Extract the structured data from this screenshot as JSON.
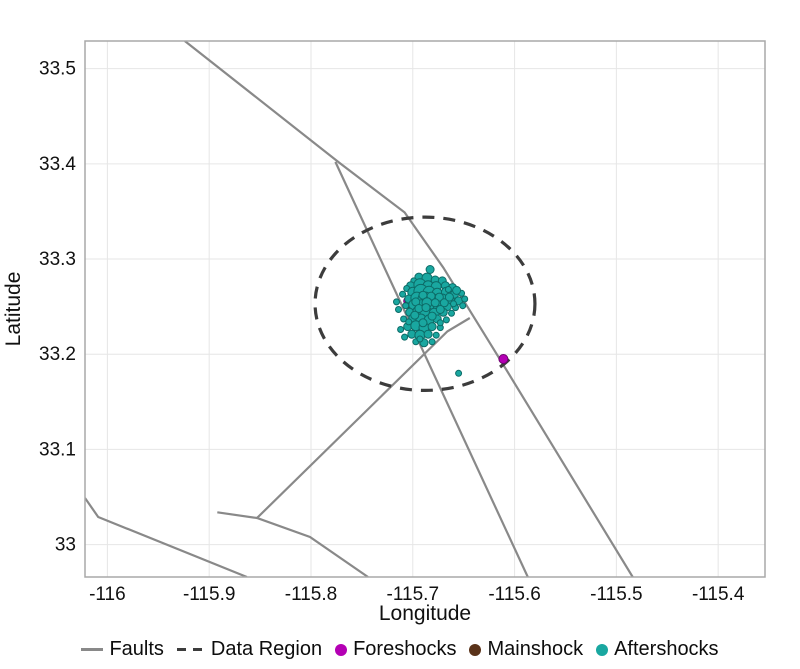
{
  "figure": {
    "xlabel": "Longitude",
    "ylabel": "Latitude"
  },
  "legend": {
    "items": [
      {
        "label": "Faults",
        "type": "line",
        "color": "#898989"
      },
      {
        "label": "Data Region",
        "type": "dash",
        "color": "#3c3c3c"
      },
      {
        "label": "Foreshocks",
        "type": "dot",
        "color": "#b400b4"
      },
      {
        "label": "Mainshock",
        "type": "dot",
        "color": "#5a3219"
      },
      {
        "label": "Aftershocks",
        "type": "dot",
        "color": "#19a7a0"
      }
    ]
  },
  "chart_data": {
    "type": "scatter",
    "title": "",
    "xlabel": "Longitude",
    "ylabel": "Latitude",
    "xlim": [
      -116.022,
      -115.354
    ],
    "ylim": [
      32.966,
      33.529
    ],
    "grid": true,
    "legend_position": "bottom",
    "xticks": {
      "values": [
        -116,
        -115.9,
        -115.8,
        -115.7,
        -115.6,
        -115.5,
        -115.4
      ],
      "labels": [
        "-116",
        "-115.9",
        "-115.8",
        "-115.7",
        "-115.6",
        "-115.5",
        "-115.4"
      ]
    },
    "yticks": {
      "values": [
        33,
        33.1,
        33.2,
        33.3,
        33.4,
        33.5
      ],
      "labels": [
        "33",
        "33.1",
        "33.2",
        "33.3",
        "33.4",
        "33.5"
      ]
    },
    "colors": {
      "grid": "#e6e6e6",
      "frame": "#a8a8a8",
      "faults": "#898989",
      "data_region": "#3c3c3c",
      "foreshocks": "#b400b4",
      "foreshocks_edge": "#6e006e",
      "mainshock": "#5a3219",
      "mainshock_edge": "#32190a",
      "aftershocks": "#19a7a0",
      "aftershocks_edge": "#0d6b67",
      "text": "#111111"
    },
    "faults": [
      [
        [
          -115.924,
          33.529
        ],
        [
          -115.772,
          33.401
        ],
        [
          -115.708,
          33.349
        ],
        [
          -115.67,
          33.291
        ],
        [
          -115.614,
          33.194
        ],
        [
          -115.484,
          32.966
        ]
      ],
      [
        [
          -115.776,
          33.402
        ],
        [
          -115.587,
          32.966
        ]
      ],
      [
        [
          -116.022,
          33.049
        ],
        [
          -116.009,
          33.029
        ],
        [
          -115.863,
          32.966
        ]
      ],
      [
        [
          -115.892,
          33.034
        ],
        [
          -115.853,
          33.028
        ],
        [
          -115.801,
          33.008
        ],
        [
          -115.744,
          32.966
        ]
      ],
      [
        [
          -115.644,
          33.238
        ],
        [
          -115.666,
          33.224
        ],
        [
          -115.853,
          33.028
        ]
      ]
    ],
    "data_region_ellipse": {
      "center": [
        -115.688,
        33.253
      ],
      "rx": 0.108,
      "ry": 0.091,
      "style": "dashed"
    },
    "series": [
      {
        "name": "Foreshocks",
        "points": [
          [
            -115.705,
            33.256,
            4
          ],
          [
            -115.611,
            33.195,
            4.5
          ]
        ]
      },
      {
        "name": "Mainshock",
        "points": [
          [
            -115.702,
            33.253,
            5.5
          ]
        ]
      },
      {
        "name": "Aftershocks",
        "points": [
          [
            -115.683,
            33.289,
            4
          ],
          [
            -115.694,
            33.281,
            4
          ],
          [
            -115.686,
            33.28,
            5
          ],
          [
            -115.678,
            33.278,
            4
          ],
          [
            -115.699,
            33.277,
            3
          ],
          [
            -115.671,
            33.277,
            4
          ],
          [
            -115.702,
            33.272,
            4
          ],
          [
            -115.693,
            33.273,
            6
          ],
          [
            -115.685,
            33.272,
            5
          ],
          [
            -115.677,
            33.271,
            5
          ],
          [
            -115.668,
            33.272,
            4
          ],
          [
            -115.661,
            33.27,
            4
          ],
          [
            -115.706,
            33.269,
            3
          ],
          [
            -115.7,
            33.265,
            5
          ],
          [
            -115.692,
            33.266,
            7
          ],
          [
            -115.684,
            33.265,
            6
          ],
          [
            -115.676,
            33.264,
            5
          ],
          [
            -115.667,
            33.265,
            5
          ],
          [
            -115.659,
            33.263,
            4
          ],
          [
            -115.652,
            33.264,
            3
          ],
          [
            -115.71,
            33.263,
            3
          ],
          [
            -115.704,
            33.258,
            4
          ],
          [
            -115.696,
            33.259,
            6
          ],
          [
            -115.688,
            33.258,
            7
          ],
          [
            -115.68,
            33.257,
            6
          ],
          [
            -115.671,
            33.258,
            5
          ],
          [
            -115.663,
            33.257,
            4
          ],
          [
            -115.655,
            33.256,
            4
          ],
          [
            -115.649,
            33.258,
            3
          ],
          [
            -115.716,
            33.255,
            3
          ],
          [
            -115.707,
            33.251,
            3
          ],
          [
            -115.699,
            33.252,
            5
          ],
          [
            -115.691,
            33.251,
            6
          ],
          [
            -115.683,
            33.25,
            6
          ],
          [
            -115.675,
            33.251,
            5
          ],
          [
            -115.666,
            33.25,
            4
          ],
          [
            -115.658,
            33.249,
            3
          ],
          [
            -115.651,
            33.251,
            3
          ],
          [
            -115.714,
            33.247,
            3
          ],
          [
            -115.703,
            33.244,
            4
          ],
          [
            -115.695,
            33.245,
            5
          ],
          [
            -115.687,
            33.244,
            6
          ],
          [
            -115.679,
            33.243,
            5
          ],
          [
            -115.67,
            33.244,
            4
          ],
          [
            -115.662,
            33.243,
            3
          ],
          [
            -115.709,
            33.237,
            3
          ],
          [
            -115.7,
            33.238,
            4
          ],
          [
            -115.692,
            33.237,
            5
          ],
          [
            -115.684,
            33.236,
            5
          ],
          [
            -115.676,
            33.237,
            4
          ],
          [
            -115.667,
            33.236,
            3
          ],
          [
            -115.705,
            33.229,
            4
          ],
          [
            -115.697,
            33.23,
            5
          ],
          [
            -115.689,
            33.228,
            5
          ],
          [
            -115.681,
            33.229,
            4
          ],
          [
            -115.673,
            33.228,
            3
          ],
          [
            -115.712,
            33.226,
            3
          ],
          [
            -115.701,
            33.221,
            4
          ],
          [
            -115.693,
            33.22,
            5
          ],
          [
            -115.685,
            33.221,
            4
          ],
          [
            -115.677,
            33.22,
            3
          ],
          [
            -115.708,
            33.218,
            3
          ],
          [
            -115.697,
            33.213,
            3
          ],
          [
            -115.689,
            33.212,
            4
          ],
          [
            -115.681,
            33.213,
            3
          ],
          [
            -115.69,
            33.262,
            4
          ],
          [
            -115.682,
            33.261,
            4
          ],
          [
            -115.674,
            33.26,
            4
          ],
          [
            -115.697,
            33.255,
            4
          ],
          [
            -115.686,
            33.254,
            5
          ],
          [
            -115.678,
            33.254,
            4
          ],
          [
            -115.669,
            33.254,
            4
          ],
          [
            -115.694,
            33.248,
            4
          ],
          [
            -115.687,
            33.249,
            4
          ],
          [
            -115.673,
            33.247,
            4
          ],
          [
            -115.698,
            33.241,
            4
          ],
          [
            -115.681,
            33.24,
            4
          ],
          [
            -115.69,
            33.233,
            4
          ],
          [
            -115.664,
            33.26,
            4
          ],
          [
            -115.657,
            33.267,
            4
          ],
          [
            -115.665,
            33.268,
            3
          ],
          [
            -115.673,
            33.233,
            3
          ],
          [
            -115.693,
            33.216,
            3
          ],
          [
            -115.704,
            33.234,
            3
          ],
          [
            -115.66,
            33.253,
            3
          ],
          [
            -115.655,
            33.18,
            3
          ]
        ]
      }
    ]
  }
}
